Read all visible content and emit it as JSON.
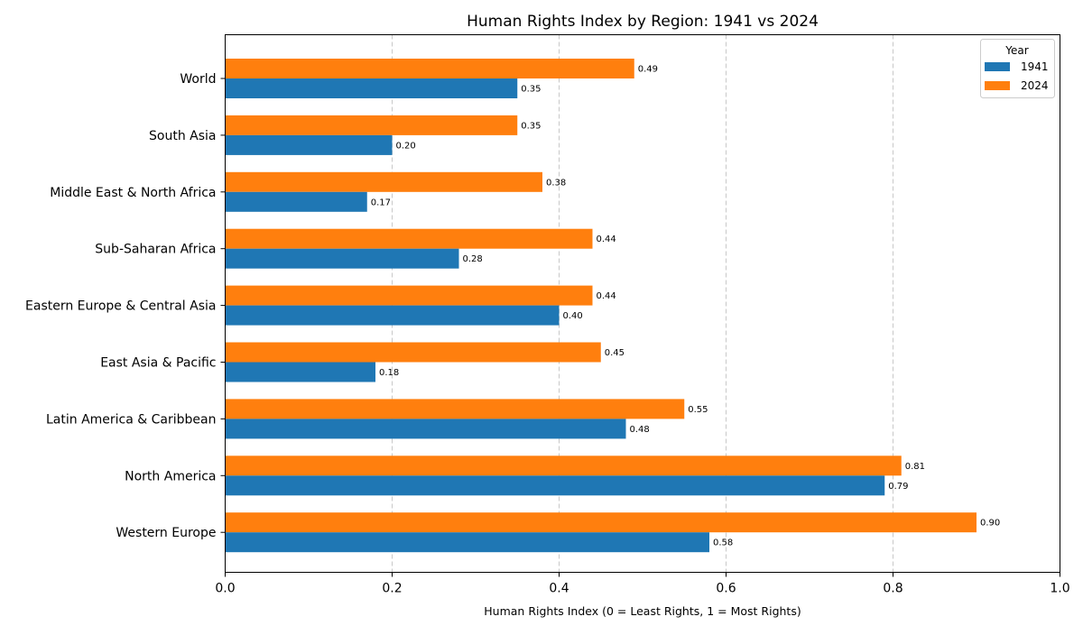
{
  "chart_data": {
    "type": "bar",
    "orientation": "horizontal",
    "title": "Human Rights Index by Region: 1941 vs 2024",
    "xlabel": "Human Rights Index (0 = Least Rights, 1 = Most Rights)",
    "ylabel": "",
    "xlim": [
      0,
      1.0
    ],
    "xticks": [
      "0.0",
      "0.2",
      "0.4",
      "0.6",
      "0.8",
      "1.0"
    ],
    "grid": "vertical dashed",
    "legend": {
      "title": "Year",
      "placement": "top-right"
    },
    "categories": [
      "World",
      "South Asia",
      "Middle East & North Africa",
      "Sub-Saharan Africa",
      "Eastern Europe & Central Asia",
      "East Asia & Pacific",
      "Latin America & Caribbean",
      "North America",
      "Western Europe"
    ],
    "series": [
      {
        "name": "1941",
        "color": "#1f77b4",
        "values": [
          0.35,
          0.2,
          0.17,
          0.28,
          0.4,
          0.18,
          0.48,
          0.79,
          0.58
        ],
        "labels": [
          "0.35",
          "0.20",
          "0.17",
          "0.28",
          "0.40",
          "0.18",
          "0.48",
          "0.79",
          "0.58"
        ]
      },
      {
        "name": "2024",
        "color": "#ff7f0e",
        "values": [
          0.49,
          0.35,
          0.38,
          0.44,
          0.44,
          0.45,
          0.55,
          0.81,
          0.9
        ],
        "labels": [
          "0.49",
          "0.35",
          "0.38",
          "0.44",
          "0.44",
          "0.45",
          "0.55",
          "0.81",
          "0.90"
        ]
      }
    ]
  }
}
